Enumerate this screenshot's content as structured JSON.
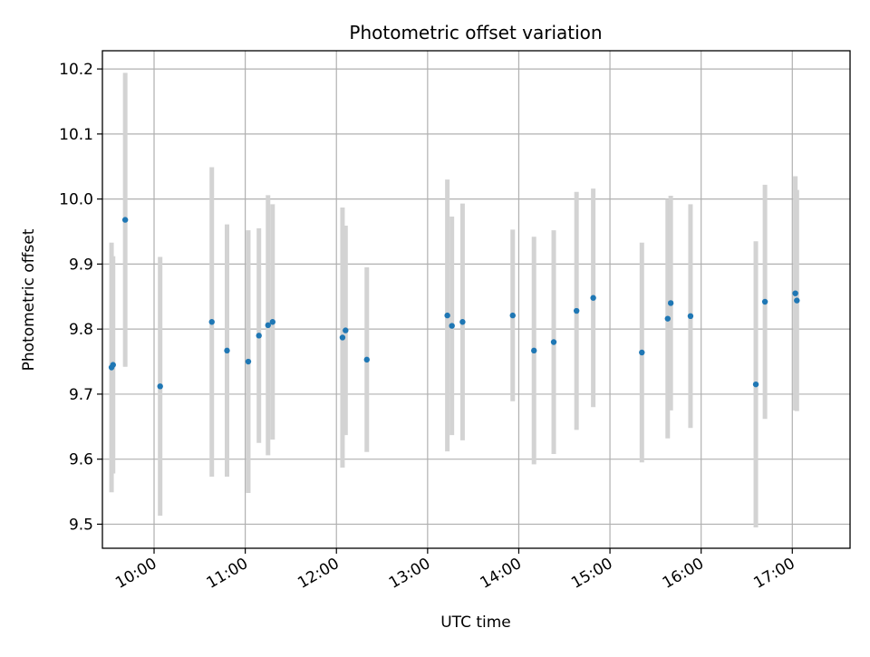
{
  "chart_data": {
    "type": "scatter",
    "title": "Photometric offset variation",
    "xlabel": "UTC time",
    "ylabel": "Photometric offset",
    "grid": true,
    "legend": "none",
    "colors": {
      "point": "#1f77b4",
      "errorbar": "#d3d3d3",
      "grid": "#b0b0b0"
    },
    "xlim": [
      "09:26",
      "17:38"
    ],
    "ylim": [
      9.463,
      10.228
    ],
    "x_ticks": [
      "10:00",
      "11:00",
      "12:00",
      "13:00",
      "14:00",
      "15:00",
      "16:00",
      "17:00"
    ],
    "y_ticks": [
      "9.5",
      "9.6",
      "9.7",
      "9.8",
      "9.9",
      "10.0",
      "10.1",
      "10.2"
    ],
    "points": [
      {
        "x": "09:32",
        "y": 9.741,
        "err": 0.192
      },
      {
        "x": "09:33",
        "y": 9.745,
        "err": 0.167
      },
      {
        "x": "09:41",
        "y": 9.968,
        "err": 0.226
      },
      {
        "x": "10:04",
        "y": 9.712,
        "err": 0.199
      },
      {
        "x": "10:38",
        "y": 9.811,
        "err": 0.238
      },
      {
        "x": "10:48",
        "y": 9.767,
        "err": 0.194
      },
      {
        "x": "11:02",
        "y": 9.75,
        "err": 0.202
      },
      {
        "x": "11:09",
        "y": 9.79,
        "err": 0.165
      },
      {
        "x": "11:15",
        "y": 9.806,
        "err": 0.2
      },
      {
        "x": "11:18",
        "y": 9.811,
        "err": 0.181
      },
      {
        "x": "12:04",
        "y": 9.787,
        "err": 0.2
      },
      {
        "x": "12:06",
        "y": 9.798,
        "err": 0.161
      },
      {
        "x": "12:20",
        "y": 9.753,
        "err": 0.142
      },
      {
        "x": "13:13",
        "y": 9.821,
        "err": 0.209
      },
      {
        "x": "13:16",
        "y": 9.805,
        "err": 0.168
      },
      {
        "x": "13:23",
        "y": 9.811,
        "err": 0.182
      },
      {
        "x": "13:56",
        "y": 9.821,
        "err": 0.132
      },
      {
        "x": "14:10",
        "y": 9.767,
        "err": 0.175
      },
      {
        "x": "14:23",
        "y": 9.78,
        "err": 0.172
      },
      {
        "x": "14:38",
        "y": 9.828,
        "err": 0.183
      },
      {
        "x": "14:49",
        "y": 9.848,
        "err": 0.168
      },
      {
        "x": "15:21",
        "y": 9.764,
        "err": 0.169
      },
      {
        "x": "15:38",
        "y": 9.816,
        "err": 0.184
      },
      {
        "x": "15:40",
        "y": 9.84,
        "err": 0.165
      },
      {
        "x": "15:53",
        "y": 9.82,
        "err": 0.172
      },
      {
        "x": "16:36",
        "y": 9.715,
        "err": 0.22
      },
      {
        "x": "16:42",
        "y": 9.842,
        "err": 0.18
      },
      {
        "x": "17:02",
        "y": 9.855,
        "err": 0.18
      },
      {
        "x": "17:03",
        "y": 9.844,
        "err": 0.17
      }
    ]
  }
}
